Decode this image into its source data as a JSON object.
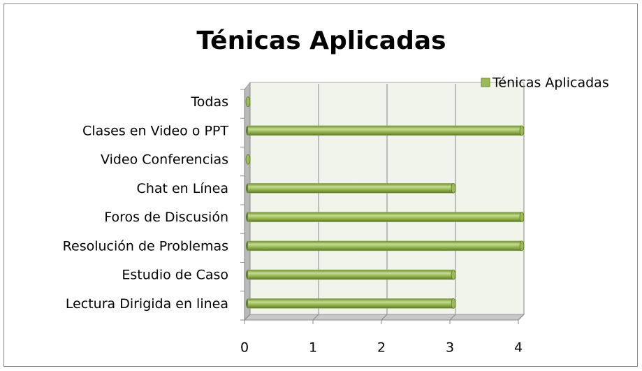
{
  "chart_data": {
    "type": "bar",
    "orientation": "horizontal",
    "title": "Ténicas Aplicadas",
    "categories": [
      "Lectura Dirigida en linea",
      "Estudio de Caso",
      "Resolución de Problemas",
      "Foros de Discusión",
      "Chat en Línea",
      "Video Conferencias",
      "Clases en Video o PPT",
      "Todas"
    ],
    "series": [
      {
        "name": "Ténicas Aplicadas",
        "color": "#9bbb59",
        "values": [
          3,
          3,
          4,
          4,
          3,
          0,
          4,
          0
        ]
      }
    ],
    "xlim": [
      0,
      4
    ],
    "xticks": [
      0,
      1,
      2,
      3,
      4
    ],
    "grid": true,
    "legend": "top-right"
  }
}
